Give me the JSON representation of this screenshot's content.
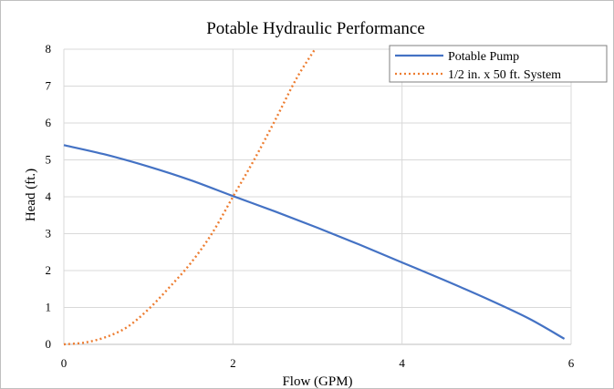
{
  "chart_data": {
    "type": "line",
    "title": "Potable Hydraulic Performance",
    "xlabel": "Flow (GPM)",
    "ylabel": "Head (ft.)",
    "xlim": [
      0,
      6
    ],
    "ylim": [
      0,
      8
    ],
    "x_ticks": [
      "0",
      "2",
      "4",
      "6"
    ],
    "y_ticks": [
      "0",
      "1",
      "2",
      "3",
      "4",
      "5",
      "6",
      "7",
      "8"
    ],
    "grid": true,
    "legend_position": "top-right",
    "series": [
      {
        "name": "Potable Pump",
        "color": "#4472c4",
        "style": "solid",
        "x": [
          0,
          0.5,
          1,
          1.5,
          2,
          2.5,
          3,
          3.5,
          4,
          4.5,
          5,
          5.5,
          5.92
        ],
        "y": [
          5.4,
          5.14,
          4.82,
          4.45,
          4.02,
          3.6,
          3.16,
          2.7,
          2.22,
          1.74,
          1.24,
          0.7,
          0.15
        ]
      },
      {
        "name": "1/2 in. x 50 ft. System",
        "color": "#ed7d31",
        "style": "dotted",
        "x": [
          0,
          0.25,
          0.5,
          0.75,
          1,
          1.25,
          1.5,
          1.75,
          2,
          2.25,
          2.5,
          2.75,
          2.97
        ],
        "y": [
          0,
          0.05,
          0.2,
          0.47,
          0.95,
          1.55,
          2.2,
          3.0,
          4.0,
          5.0,
          6.08,
          7.2,
          8.0
        ]
      }
    ]
  }
}
